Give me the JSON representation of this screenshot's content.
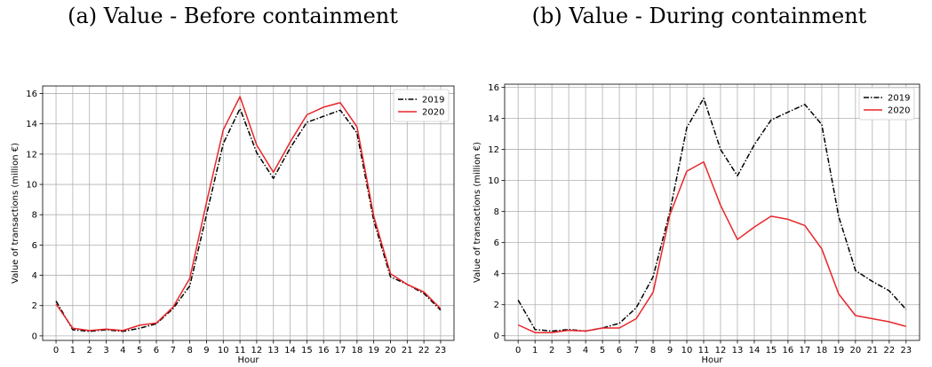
{
  "chart_data": [
    {
      "type": "line",
      "caption": "(a) Value - Before containment",
      "xlabel": "Hour",
      "ylabel": "Value of transactions (million €)",
      "x": [
        0,
        1,
        2,
        3,
        4,
        5,
        6,
        7,
        8,
        9,
        10,
        11,
        12,
        13,
        14,
        15,
        16,
        17,
        18,
        19,
        20,
        21,
        22,
        23
      ],
      "xticks": [
        "0",
        "1",
        "2",
        "3",
        "4",
        "5",
        "6",
        "7",
        "8",
        "9",
        "10",
        "11",
        "12",
        "13",
        "14",
        "15",
        "16",
        "17",
        "18",
        "19",
        "20",
        "21",
        "22",
        "23"
      ],
      "yticks": [
        "0",
        "2",
        "4",
        "6",
        "8",
        "10",
        "12",
        "14",
        "16"
      ],
      "ylim": [
        -0.3,
        16.5
      ],
      "grid": true,
      "legend_position": "top-right",
      "series": [
        {
          "name": "2019",
          "color": "#000000",
          "style": "dashdot",
          "values": [
            2.3,
            0.4,
            0.3,
            0.4,
            0.3,
            0.5,
            0.8,
            1.8,
            3.3,
            8.0,
            12.7,
            15.0,
            12.1,
            10.4,
            12.4,
            14.1,
            14.5,
            14.9,
            13.4,
            7.6,
            3.9,
            3.4,
            2.8,
            1.7
          ]
        },
        {
          "name": "2020",
          "color": "#e8262a",
          "style": "solid",
          "values": [
            2.1,
            0.5,
            0.35,
            0.45,
            0.35,
            0.7,
            0.85,
            1.9,
            3.8,
            8.8,
            13.6,
            15.8,
            12.6,
            10.8,
            12.8,
            14.6,
            15.1,
            15.4,
            13.8,
            7.9,
            4.1,
            3.4,
            2.9,
            1.8
          ]
        }
      ]
    },
    {
      "type": "line",
      "caption": "(b) Value - During containment",
      "xlabel": "Hour",
      "ylabel": "Value of transactions (million €)",
      "x": [
        0,
        1,
        2,
        3,
        4,
        5,
        6,
        7,
        8,
        9,
        10,
        11,
        12,
        13,
        14,
        15,
        16,
        17,
        18,
        19,
        20,
        21,
        22,
        23
      ],
      "xticks": [
        "0",
        "1",
        "2",
        "3",
        "4",
        "5",
        "6",
        "7",
        "8",
        "9",
        "10",
        "11",
        "12",
        "13",
        "14",
        "15",
        "16",
        "17",
        "18",
        "19",
        "20",
        "21",
        "22",
        "23"
      ],
      "yticks": [
        "0",
        "2",
        "4",
        "6",
        "8",
        "10",
        "12",
        "14",
        "16"
      ],
      "ylim": [
        -0.3,
        16.2
      ],
      "grid": true,
      "legend_position": "top-right",
      "series": [
        {
          "name": "2019",
          "color": "#000000",
          "style": "dashdot",
          "values": [
            2.3,
            0.4,
            0.3,
            0.4,
            0.3,
            0.5,
            0.8,
            1.8,
            3.8,
            8.0,
            13.4,
            15.3,
            12.0,
            10.3,
            12.3,
            13.9,
            14.4,
            14.9,
            13.6,
            7.7,
            4.2,
            3.5,
            2.9,
            1.7
          ]
        },
        {
          "name": "2020",
          "color": "#e8262a",
          "style": "solid",
          "values": [
            0.7,
            0.2,
            0.2,
            0.35,
            0.3,
            0.5,
            0.5,
            1.1,
            2.8,
            7.8,
            10.6,
            11.2,
            8.4,
            6.2,
            7.0,
            7.7,
            7.5,
            7.1,
            5.6,
            2.7,
            1.3,
            1.1,
            0.9,
            0.6
          ]
        }
      ]
    }
  ]
}
